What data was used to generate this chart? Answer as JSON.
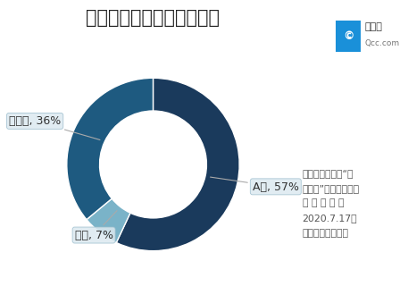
{
  "title": "实业投资相关上市企业分布",
  "slices": [
    {
      "label": "A股, 57%",
      "pct": 57,
      "color": "#1a3a5c"
    },
    {
      "label": "港股, 7%",
      "pct": 7,
      "color": "#7ab3c8"
    },
    {
      "label": "新三板, 36%",
      "pct": 36,
      "color": "#1e5a80"
    }
  ],
  "donut_width": 0.38,
  "background_color": "#ffffff",
  "title_fontsize": 15,
  "label_fontsize": 9,
  "start_angle": 90,
  "annotation_text": "仅统计关键词为“实\n业投资”的相关企业；\n数 据 截 至 ：\n2020.7.17；\n数据来源：企查查"
}
